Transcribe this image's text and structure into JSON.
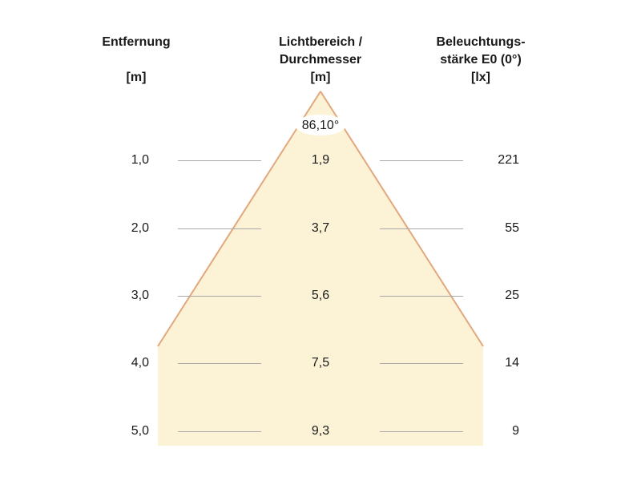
{
  "headers": {
    "distance": {
      "line1": "Entfernung",
      "line2": "",
      "unit": "[m]"
    },
    "beam": {
      "line1": "Lichtbereich /",
      "line2": "Durchmesser",
      "unit": "[m]"
    },
    "illuminance": {
      "line1": "Beleuchtungs-",
      "line2": "stärke E0 (0°)",
      "unit": "[lx]"
    }
  },
  "beam_angle": "86,10°",
  "colors": {
    "beam_fill": "#fcf3d6",
    "beam_edge": "#e2a77c",
    "separator": "#a8a8a8"
  },
  "rows": [
    {
      "distance": "1,0",
      "diameter": "1,9",
      "illuminance": "221"
    },
    {
      "distance": "2,0",
      "diameter": "3,7",
      "illuminance": "55"
    },
    {
      "distance": "3,0",
      "diameter": "5,6",
      "illuminance": "25"
    },
    {
      "distance": "4,0",
      "diameter": "7,5",
      "illuminance": "14"
    },
    {
      "distance": "5,0",
      "diameter": "9,3",
      "illuminance": "9"
    }
  ]
}
